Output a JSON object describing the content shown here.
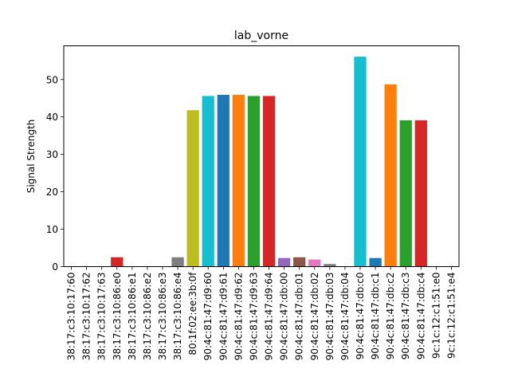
{
  "chart_data": {
    "type": "bar",
    "title": "lab_vorne",
    "xlabel": "",
    "ylabel": "Signal Strength",
    "ylim": [
      0,
      59
    ],
    "yticks": [
      0,
      10,
      20,
      30,
      40,
      50
    ],
    "grid": false,
    "legend": "none",
    "categories": [
      "38:17:c3:10:17:60",
      "38:17:c3:10:17:62",
      "38:17:c3:10:17:63",
      "38:17:c3:10:86:e0",
      "38:17:c3:10:86:e1",
      "38:17:c3:10:86:e2",
      "38:17:c3:10:86:e3",
      "38:17:c3:10:86:e4",
      "80:1f:02:ee:3b:0f",
      "90:4c:81:47:d9:60",
      "90:4c:81:47:d9:61",
      "90:4c:81:47:d9:62",
      "90:4c:81:47:d9:63",
      "90:4c:81:47:d9:64",
      "90:4c:81:47:db:00",
      "90:4c:81:47:db:01",
      "90:4c:81:47:db:02",
      "90:4c:81:47:db:03",
      "90:4c:81:47:db:04",
      "90:4c:81:47:db:c0",
      "90:4c:81:47:db:c1",
      "90:4c:81:47:db:c2",
      "90:4c:81:47:db:c3",
      "90:4c:81:47:db:c4",
      "9c:1c:12:c1:51:e0",
      "9c:1c:12:c1:51:e4"
    ],
    "values": [
      0,
      0,
      0,
      2.5,
      0,
      0,
      0,
      2.5,
      41.8,
      45.6,
      45.9,
      45.9,
      45.6,
      45.6,
      2.3,
      2.5,
      1.9,
      0.7,
      0,
      56.1,
      2.3,
      48.7,
      39.1,
      39.1,
      0,
      0
    ],
    "colors": [
      "#1f77b4",
      "#ff7f0e",
      "#2ca02c",
      "#d62728",
      "#9467bd",
      "#8c564b",
      "#e377c2",
      "#7f7f7f",
      "#bcbd22",
      "#17becf",
      "#1f77b4",
      "#ff7f0e",
      "#2ca02c",
      "#d62728",
      "#9467bd",
      "#8c564b",
      "#e377c2",
      "#7f7f7f",
      "#bcbd22",
      "#17becf",
      "#1f77b4",
      "#ff7f0e",
      "#2ca02c",
      "#d62728",
      "#9467bd",
      "#8c564b"
    ]
  }
}
